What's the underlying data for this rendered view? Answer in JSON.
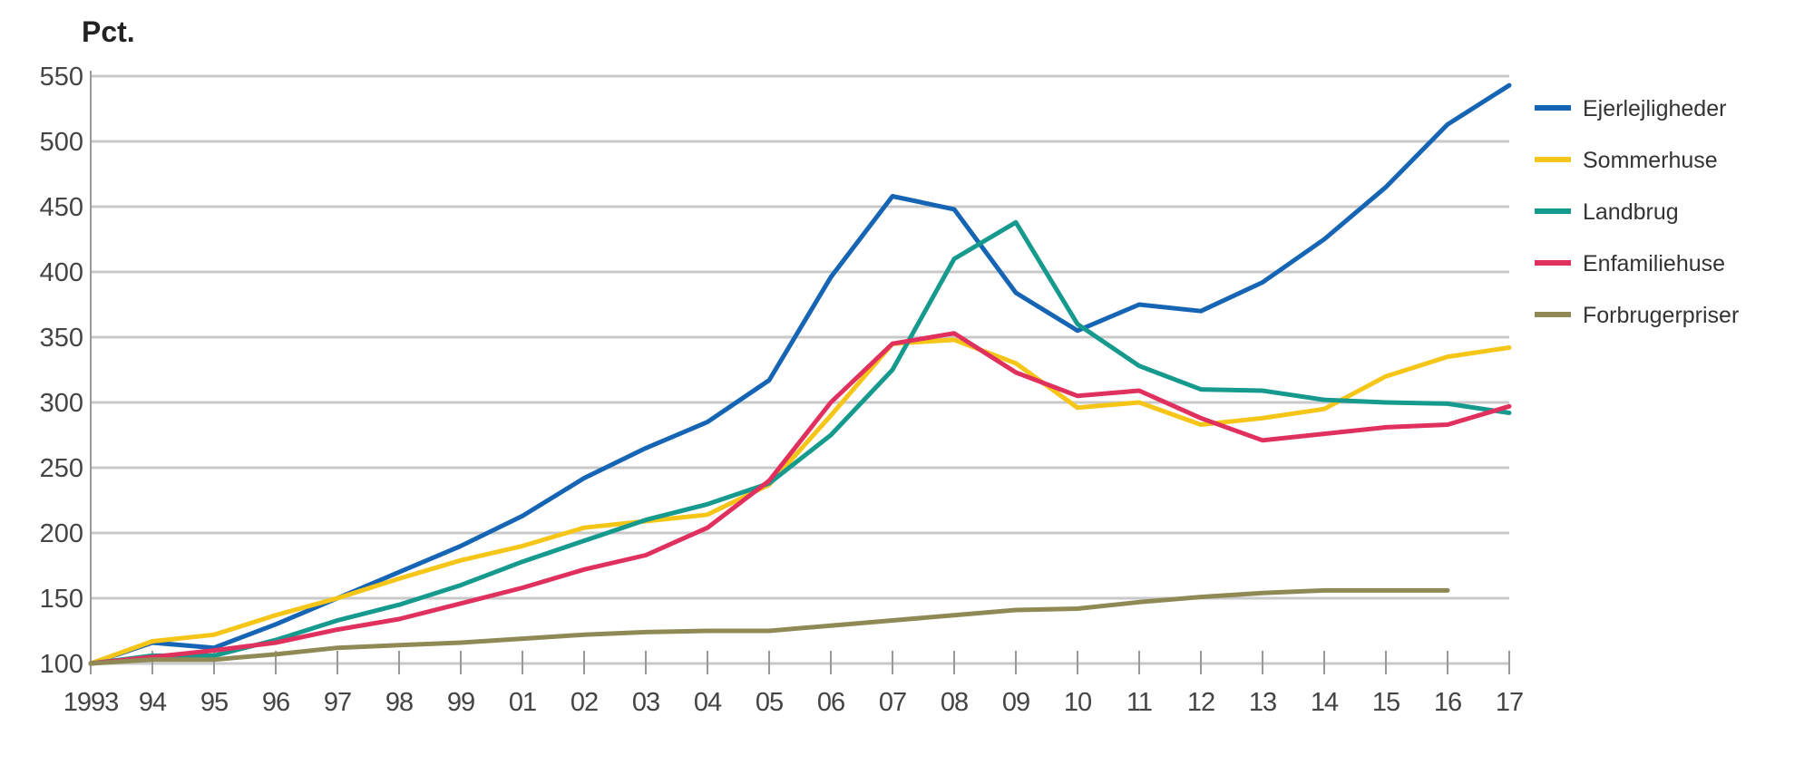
{
  "chart_data": {
    "type": "line",
    "ylabel": "Pct.",
    "ylim": [
      100,
      550
    ],
    "yticks": [
      100,
      150,
      200,
      250,
      300,
      350,
      400,
      450,
      500,
      550
    ],
    "categories": [
      "1993",
      "94",
      "95",
      "96",
      "97",
      "98",
      "99",
      "01",
      "02",
      "03",
      "04",
      "05",
      "06",
      "07",
      "08",
      "09",
      "10",
      "11",
      "12",
      "13",
      "14",
      "15",
      "16",
      "17"
    ],
    "grid": true,
    "legend_position": "right",
    "series": [
      {
        "name": "Ejerlejligheder",
        "color": "#1565b4",
        "values": [
          100,
          116,
          112,
          130,
          150,
          170,
          190,
          213,
          242,
          265,
          285,
          317,
          396,
          458,
          448,
          384,
          355,
          375,
          370,
          392,
          425,
          465,
          513,
          543
        ]
      },
      {
        "name": "Sommerhuse",
        "color": "#f5c518",
        "values": [
          100,
          117,
          122,
          137,
          150,
          165,
          179,
          190,
          204,
          209,
          214,
          237,
          290,
          345,
          348,
          330,
          296,
          300,
          283,
          288,
          295,
          320,
          335,
          342
        ]
      },
      {
        "name": "Landbrug",
        "color": "#179a8e",
        "values": [
          100,
          106,
          106,
          118,
          133,
          145,
          160,
          178,
          194,
          210,
          222,
          238,
          275,
          325,
          410,
          438,
          360,
          328,
          310,
          309,
          302,
          300,
          299,
          292
        ]
      },
      {
        "name": "Enfamiliehuse",
        "color": "#e0305e",
        "values": [
          100,
          105,
          110,
          116,
          126,
          134,
          146,
          158,
          172,
          183,
          204,
          240,
          300,
          345,
          353,
          323,
          305,
          309,
          288,
          271,
          276,
          281,
          283,
          297
        ]
      },
      {
        "name": "Forbrugerpriser",
        "color": "#8f8a55",
        "values": [
          100,
          103,
          103,
          107,
          112,
          114,
          116,
          119,
          122,
          124,
          125,
          125,
          129,
          133,
          137,
          141,
          142,
          147,
          151,
          154,
          156,
          156,
          156,
          null
        ]
      }
    ]
  }
}
